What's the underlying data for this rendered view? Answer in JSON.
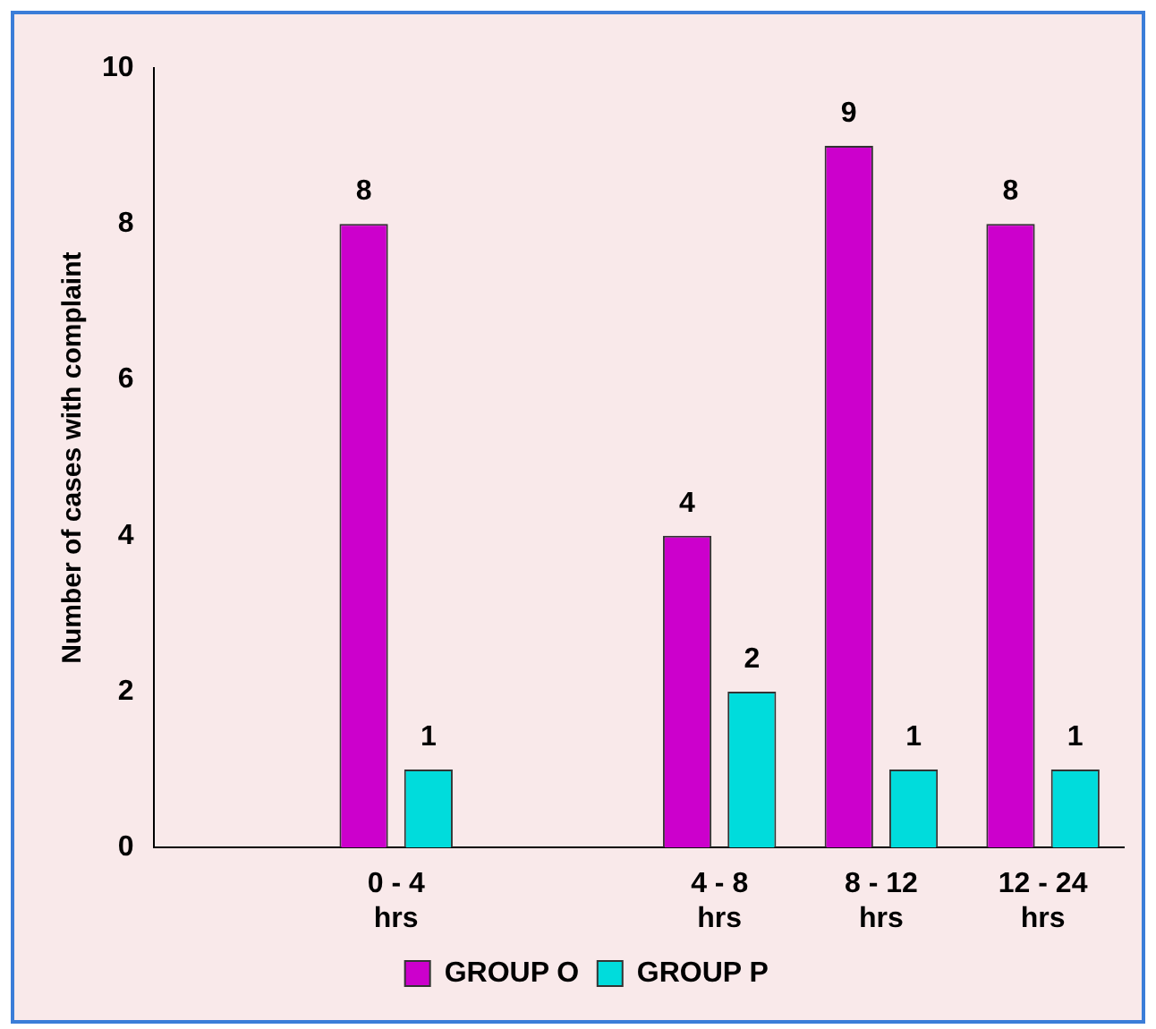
{
  "chart_data": {
    "type": "bar",
    "ylabel": "Number of cases with complaint",
    "categories": [
      null,
      "0 - 4 hrs",
      null,
      "4 - 8 hrs",
      "8 - 12 hrs",
      "12 - 24 hrs"
    ],
    "series": [
      {
        "name": "GROUP O",
        "color": "#cc00cc",
        "values": [
          null,
          8,
          null,
          4,
          9,
          8
        ]
      },
      {
        "name": "GROUP P",
        "color": "#00dcdc",
        "values": [
          null,
          1,
          null,
          2,
          1,
          1
        ]
      }
    ],
    "ylim": [
      0,
      10
    ],
    "yticks": [
      0,
      2,
      4,
      6,
      8,
      10
    ],
    "grid": false,
    "legend": "bottom",
    "data_labels": true
  }
}
